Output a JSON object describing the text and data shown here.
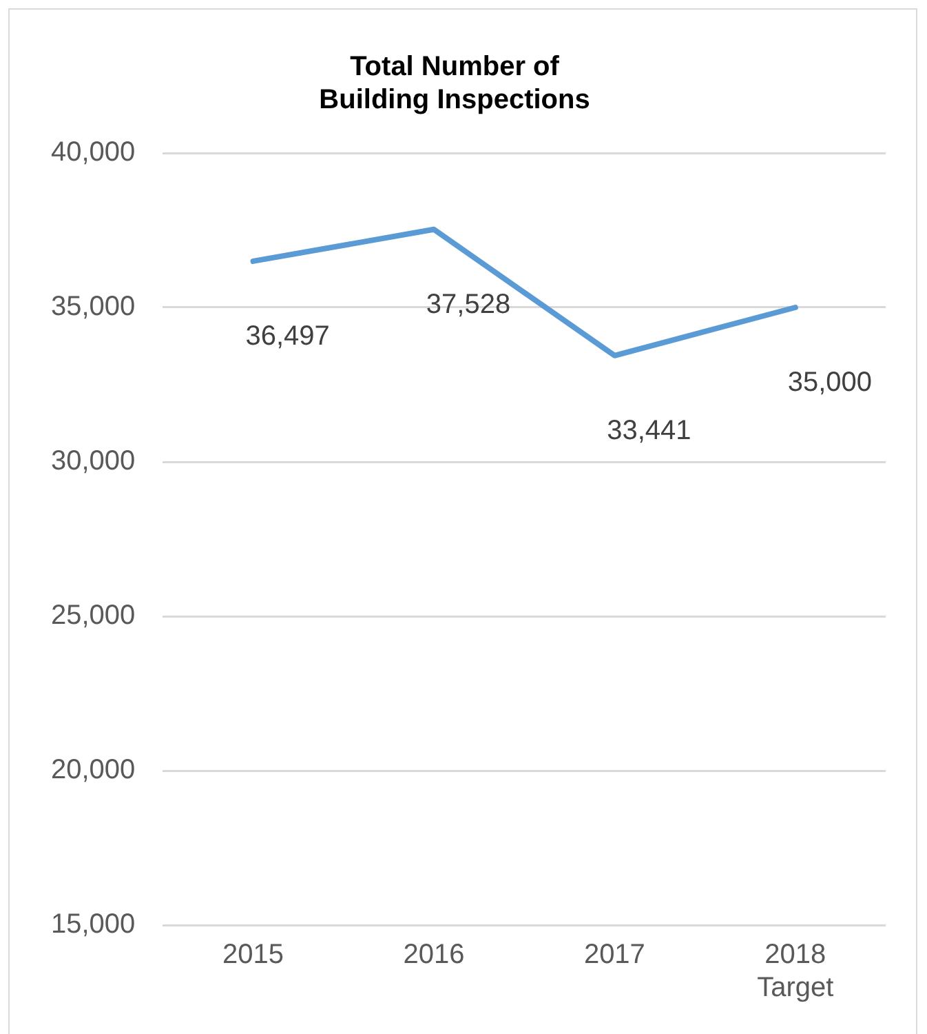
{
  "chart_data": {
    "type": "line",
    "title": "Total Number of\nBuilding Inspections",
    "categories": [
      "2015",
      "2016",
      "2017",
      "2018\nTarget"
    ],
    "series": [
      {
        "color": "#5b9bd5",
        "values": [
          36497,
          37528,
          33441,
          35000
        ],
        "value_labels": [
          "36,497",
          "37,528",
          "33,441",
          "35,000"
        ]
      }
    ],
    "ylim": [
      15000,
      40000
    ],
    "yticks": [
      {
        "value": 15000,
        "label": "15,000"
      },
      {
        "value": 20000,
        "label": "20,000"
      },
      {
        "value": 25000,
        "label": "25,000"
      },
      {
        "value": 30000,
        "label": "30,000"
      },
      {
        "value": 35000,
        "label": "35,000"
      },
      {
        "value": 40000,
        "label": "40,000"
      }
    ],
    "grid": "y",
    "legend": false,
    "marker": "none",
    "line_style": "solid"
  }
}
